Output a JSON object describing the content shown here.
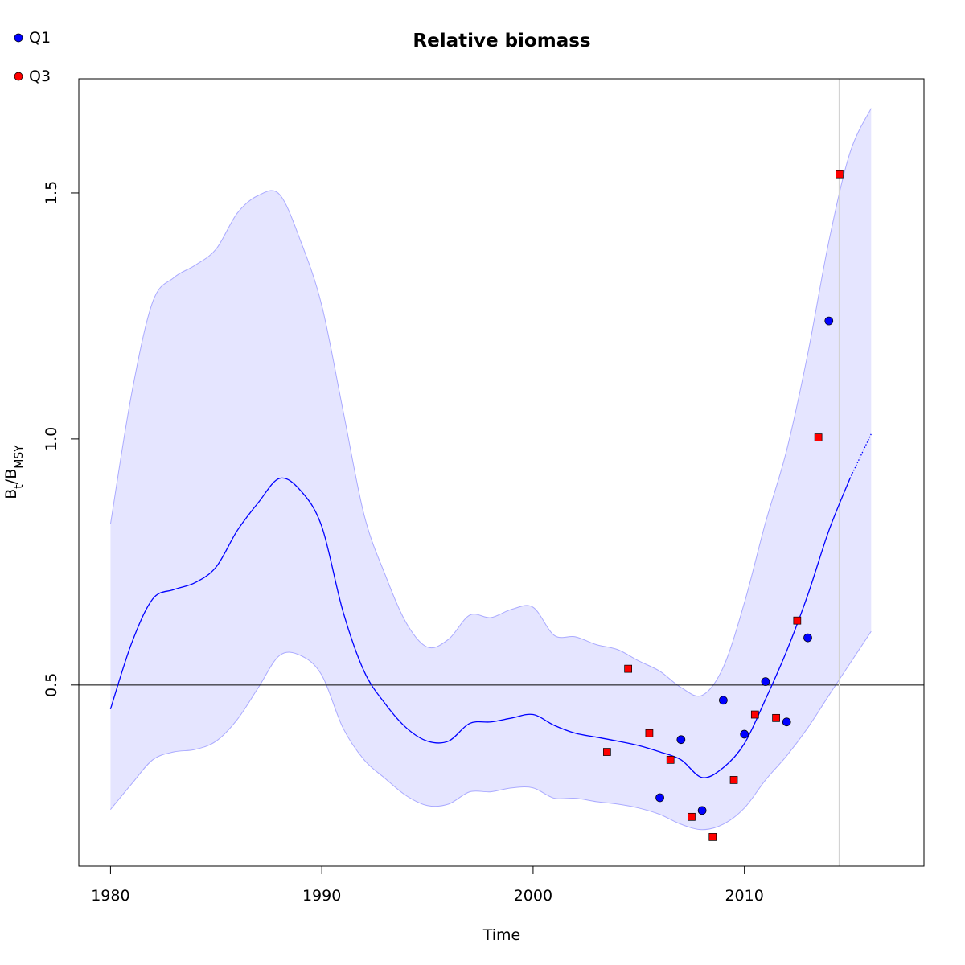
{
  "chart_data": {
    "type": "line",
    "title": "Relative biomass",
    "xlabel": "Time",
    "ylabel_parts": [
      "B",
      "t",
      "/B",
      "MSY"
    ],
    "xlim": [
      1978.5,
      2018.5
    ],
    "ylim": [
      0.132,
      1.732
    ],
    "xticks": [
      1980,
      1990,
      2000,
      2010
    ],
    "yticks": [
      0.5,
      {
        "value": 1,
        "label": "1.0"
      },
      1.5
    ],
    "hlines": [
      0.5
    ],
    "hline_color": "#000000",
    "vlines": [
      2014.5
    ],
    "vline_color": "#d3d3d3",
    "band": {
      "color": "#e5e5ff",
      "edge_color": "#aaaaff",
      "x": [
        1980,
        1981,
        1982,
        1983,
        1984,
        1985,
        1986,
        1987,
        1988,
        1989,
        1990,
        1991,
        1992,
        1993,
        1994,
        1995,
        1996,
        1997,
        1998,
        1999,
        2000,
        2001,
        2002,
        2003,
        2004,
        2005,
        2006,
        2007,
        2008,
        2009,
        2010,
        2011,
        2012,
        2013,
        2014,
        2015,
        2016
      ],
      "upper": [
        0.827,
        1.092,
        1.279,
        1.328,
        1.353,
        1.386,
        1.459,
        1.495,
        1.497,
        1.402,
        1.271,
        1.059,
        0.846,
        0.724,
        0.626,
        0.577,
        0.593,
        0.642,
        0.637,
        0.654,
        0.658,
        0.601,
        0.598,
        0.582,
        0.572,
        0.549,
        0.528,
        0.495,
        0.479,
        0.536,
        0.667,
        0.83,
        0.977,
        1.173,
        1.402,
        1.582,
        1.672
      ],
      "lower": [
        0.247,
        0.299,
        0.348,
        0.364,
        0.369,
        0.386,
        0.43,
        0.495,
        0.56,
        0.56,
        0.52,
        0.413,
        0.348,
        0.31,
        0.275,
        0.255,
        0.258,
        0.283,
        0.283,
        0.291,
        0.291,
        0.27,
        0.27,
        0.263,
        0.258,
        0.25,
        0.237,
        0.217,
        0.206,
        0.217,
        0.25,
        0.307,
        0.356,
        0.413,
        0.479,
        0.544,
        0.609
      ]
    },
    "lines": [
      {
        "color": "#0000ff",
        "dash": "solid",
        "x": [
          1980,
          1981,
          1982,
          1983,
          1984,
          1985,
          1986,
          1987,
          1988,
          1989,
          1990,
          1991,
          1992,
          1993,
          1994,
          1995,
          1996,
          1997,
          1998,
          1999,
          2000,
          2001,
          2002,
          2003,
          2004,
          2005,
          2006,
          2007,
          2008,
          2009,
          2010,
          2011,
          2012,
          2013,
          2014,
          2015
        ],
        "values": [
          0.451,
          0.585,
          0.675,
          0.694,
          0.708,
          0.74,
          0.814,
          0.871,
          0.92,
          0.895,
          0.822,
          0.65,
          0.528,
          0.462,
          0.413,
          0.386,
          0.386,
          0.422,
          0.425,
          0.433,
          0.44,
          0.418,
          0.402,
          0.394,
          0.386,
          0.377,
          0.364,
          0.348,
          0.312,
          0.332,
          0.381,
          0.471,
          0.569,
          0.683,
          0.814,
          0.92
        ]
      },
      {
        "color": "#0000ff",
        "dash": "dotted",
        "x": [
          2015,
          2016
        ],
        "values": [
          0.92,
          1.01
        ]
      }
    ],
    "series": [
      {
        "name": "Q1",
        "color": "#0000ff",
        "marker": "circle",
        "x": [
          2006,
          2007,
          2008,
          2009,
          2010,
          2011,
          2012,
          2013,
          2014
        ],
        "values": [
          0.271,
          0.389,
          0.245,
          0.469,
          0.4,
          0.507,
          0.425,
          0.596,
          1.24
        ]
      },
      {
        "name": "Q3",
        "color": "#ff0000",
        "marker": "square",
        "x": [
          2003.5,
          2004.5,
          2005.5,
          2006.5,
          2007.5,
          2008.5,
          2009.5,
          2010.5,
          2011.5,
          2012.5,
          2013.5,
          2014.5
        ],
        "values": [
          0.364,
          0.533,
          0.402,
          0.348,
          0.232,
          0.191,
          0.307,
          0.44,
          0.433,
          0.631,
          1.003,
          1.538
        ]
      }
    ]
  }
}
